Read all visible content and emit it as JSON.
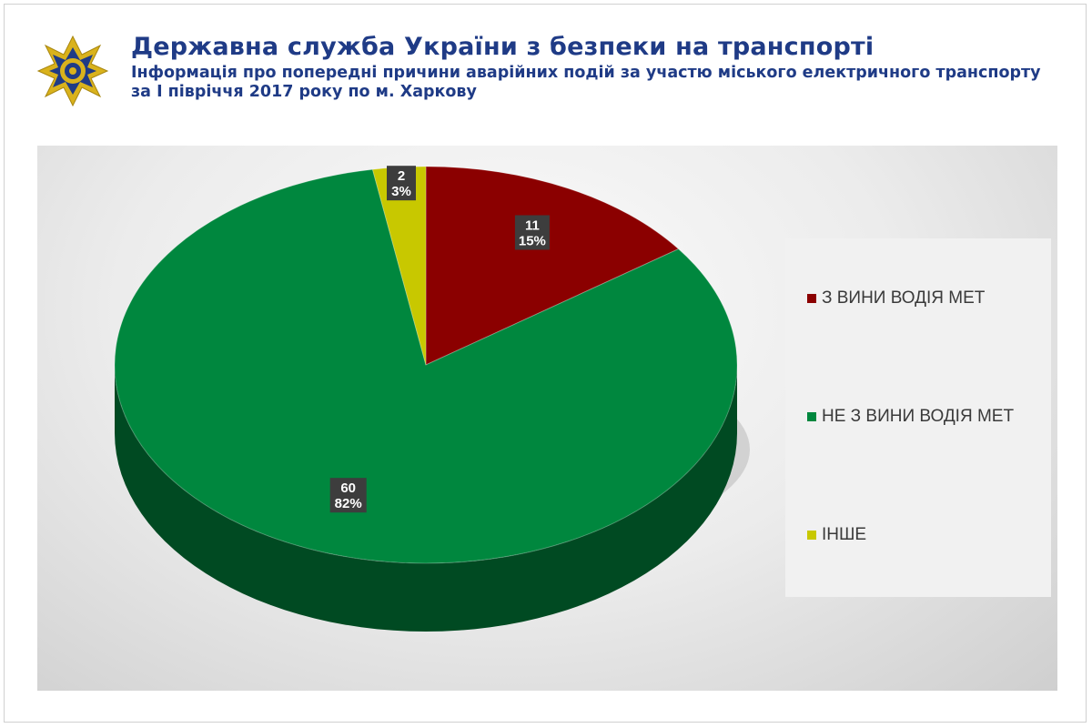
{
  "header": {
    "title": "Державна служба України з безпеки на транспорті",
    "subtitle": "Інформація про попередні причини аварійних подій за участю міського електричного транспорту за І півріччя 2017 року по м. Харкову",
    "logo_icon": "emblem-icon"
  },
  "chart_data": {
    "type": "pie",
    "title": "",
    "legend_position": "right",
    "categories": [
      "З ВИНИ ВОДІЯ МЕТ",
      "НЕ З ВИНИ ВОДІЯ МЕТ",
      "ІНШЕ"
    ],
    "values": [
      11,
      60,
      2
    ],
    "percent_labels": [
      "15%",
      "82%",
      "3%"
    ],
    "value_labels": [
      "11",
      "60",
      "2"
    ],
    "colors": [
      "#8b0000",
      "#00873e",
      "#c8c800"
    ]
  }
}
